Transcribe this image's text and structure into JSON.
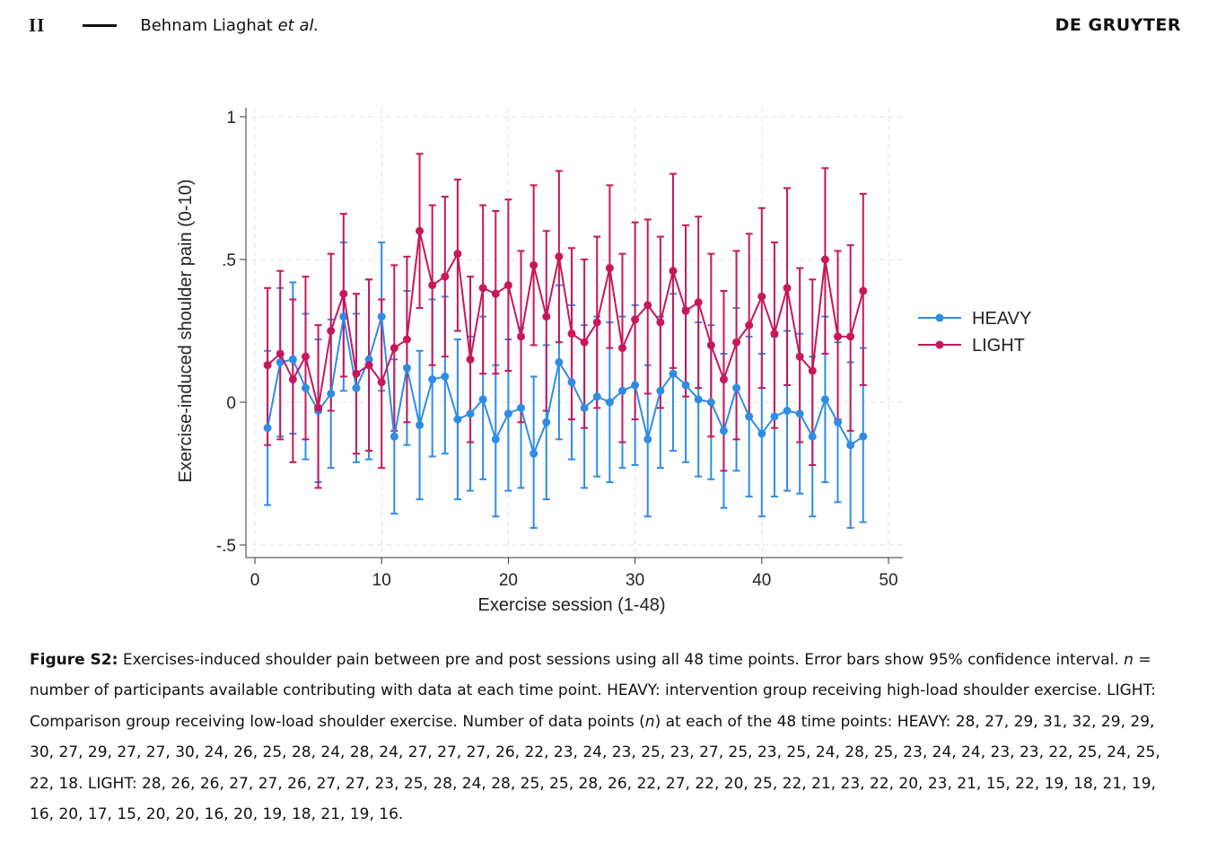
{
  "header": {
    "page_number": "II",
    "authors": "Behnam Liaghat",
    "authors_suffix": "et al.",
    "publisher": "DE GRUYTER"
  },
  "caption": {
    "label": "Figure S2:",
    "text_1": " Exercises-induced shoulder pain between pre and post sessions using all 48 time points. Error bars show 95% confidence interval. ",
    "n_symbol": "n",
    "text_2": " = number of participants available contributing with data at each time point. HEAVY: intervention group receiving high-load shoulder exercise. LIGHT: Comparison group receiving low-load shoulder exercise. Number of data points (",
    "text_3": ") at each of the 48 time points: HEAVY: 28, 27, 29, 31, 32, 29, 29, 30, 27, 29, 27, 27, 30, 24, 26, 25, 28, 24, 28, 24, 27, 27, 27, 26, 22, 23, 24, 23, 25, 23, 27, 25, 23, 25, 24, 28, 25, 23, 24, 24, 23, 23, 22, 25, 24, 25, 22, 18. LIGHT: 28, 26, 26, 27, 27, 26, 27, 27, 23, 25, 28, 24, 28, 25, 25, 28, 26, 22, 27, 22, 20, 25, 22, 21, 23, 22, 20, 23, 21, 15, 22, 19, 18, 21, 19, 16, 20, 17, 15, 20, 20, 16, 20, 19, 18, 21, 19, 16."
  },
  "colors": {
    "heavy": "#2f8ce6",
    "light": "#c8175a"
  },
  "chart_data": {
    "type": "line",
    "title": "",
    "xlabel": "Exercise session (1-48)",
    "ylabel": "Exercise-induced shoulder pain (0-10)",
    "xlim": [
      0,
      50
    ],
    "ylim": [
      -0.5,
      1
    ],
    "xticks": [
      0,
      10,
      20,
      30,
      40,
      50
    ],
    "yticks": [
      -0.5,
      0,
      0.5,
      1
    ],
    "ytick_labels": [
      "-.5",
      "0",
      ".5",
      "1"
    ],
    "grid": true,
    "legend_position": "right",
    "error_bars": "95% confidence interval",
    "x": [
      1,
      2,
      3,
      4,
      5,
      6,
      7,
      8,
      9,
      10,
      11,
      12,
      13,
      14,
      15,
      16,
      17,
      18,
      19,
      20,
      21,
      22,
      23,
      24,
      25,
      26,
      27,
      28,
      29,
      30,
      31,
      32,
      33,
      34,
      35,
      36,
      37,
      38,
      39,
      40,
      41,
      42,
      43,
      44,
      45,
      46,
      47,
      48
    ],
    "series": [
      {
        "name": "HEAVY",
        "values": [
          -0.09,
          0.14,
          0.15,
          0.05,
          -0.03,
          0.03,
          0.3,
          0.05,
          0.15,
          0.3,
          -0.12,
          0.12,
          -0.08,
          0.08,
          0.09,
          -0.06,
          -0.04,
          0.01,
          -0.13,
          -0.04,
          -0.02,
          -0.18,
          -0.07,
          0.14,
          0.07,
          -0.02,
          0.02,
          0.0,
          0.04,
          0.06,
          -0.13,
          0.04,
          0.1,
          0.06,
          0.01,
          0.0,
          -0.1,
          0.05,
          -0.05,
          -0.11,
          -0.05,
          -0.03,
          -0.04,
          -0.12,
          0.01,
          -0.07,
          -0.15,
          -0.12
        ],
        "ci_lower": [
          -0.36,
          -0.12,
          -0.11,
          -0.2,
          -0.28,
          -0.23,
          0.04,
          -0.21,
          -0.2,
          0.04,
          -0.39,
          -0.15,
          -0.34,
          -0.19,
          -0.18,
          -0.34,
          -0.31,
          -0.27,
          -0.4,
          -0.31,
          -0.3,
          -0.44,
          -0.34,
          -0.13,
          -0.2,
          -0.3,
          -0.26,
          -0.28,
          -0.23,
          -0.22,
          -0.4,
          -0.23,
          -0.17,
          -0.21,
          -0.26,
          -0.27,
          -0.37,
          -0.24,
          -0.33,
          -0.4,
          -0.33,
          -0.31,
          -0.32,
          -0.4,
          -0.28,
          -0.35,
          -0.44,
          -0.42
        ],
        "ci_upper": [
          0.18,
          0.4,
          0.42,
          0.31,
          0.22,
          0.29,
          0.56,
          0.31,
          0.43,
          0.56,
          0.15,
          0.39,
          0.18,
          0.36,
          0.37,
          0.22,
          0.23,
          0.3,
          0.13,
          0.22,
          0.26,
          0.09,
          0.2,
          0.41,
          0.34,
          0.27,
          0.3,
          0.28,
          0.3,
          0.34,
          0.13,
          0.3,
          0.38,
          0.33,
          0.28,
          0.27,
          0.17,
          0.33,
          0.23,
          0.17,
          0.23,
          0.25,
          0.24,
          0.16,
          0.3,
          0.21,
          0.14,
          0.19
        ]
      },
      {
        "name": "LIGHT",
        "values": [
          0.13,
          0.17,
          0.08,
          0.16,
          -0.02,
          0.25,
          0.38,
          0.1,
          0.13,
          0.07,
          0.19,
          0.22,
          0.6,
          0.41,
          0.44,
          0.52,
          0.15,
          0.4,
          0.38,
          0.41,
          0.23,
          0.48,
          0.3,
          0.51,
          0.24,
          0.21,
          0.28,
          0.47,
          0.19,
          0.29,
          0.34,
          0.28,
          0.46,
          0.32,
          0.35,
          0.2,
          0.08,
          0.21,
          0.27,
          0.37,
          0.24,
          0.4,
          0.16,
          0.11,
          0.5,
          0.23,
          0.23,
          0.39
        ],
        "ci_lower": [
          -0.15,
          -0.13,
          -0.21,
          -0.13,
          -0.3,
          -0.03,
          0.09,
          -0.18,
          -0.17,
          -0.23,
          -0.1,
          -0.07,
          0.33,
          0.13,
          0.16,
          0.25,
          -0.14,
          0.1,
          0.1,
          0.11,
          -0.07,
          0.2,
          -0.03,
          0.21,
          -0.06,
          -0.09,
          -0.02,
          0.19,
          -0.14,
          -0.06,
          0.03,
          -0.02,
          0.12,
          0.02,
          0.05,
          -0.12,
          -0.24,
          -0.13,
          -0.05,
          0.05,
          -0.09,
          0.06,
          -0.14,
          -0.22,
          0.17,
          -0.06,
          -0.1,
          0.06
        ],
        "ci_upper": [
          0.4,
          0.46,
          0.36,
          0.44,
          0.27,
          0.52,
          0.66,
          0.38,
          0.43,
          0.36,
          0.48,
          0.51,
          0.87,
          0.69,
          0.72,
          0.78,
          0.44,
          0.69,
          0.67,
          0.71,
          0.53,
          0.76,
          0.6,
          0.81,
          0.54,
          0.5,
          0.58,
          0.76,
          0.52,
          0.63,
          0.64,
          0.58,
          0.8,
          0.62,
          0.65,
          0.52,
          0.39,
          0.53,
          0.59,
          0.68,
          0.56,
          0.75,
          0.47,
          0.43,
          0.82,
          0.53,
          0.55,
          0.73
        ]
      }
    ]
  }
}
